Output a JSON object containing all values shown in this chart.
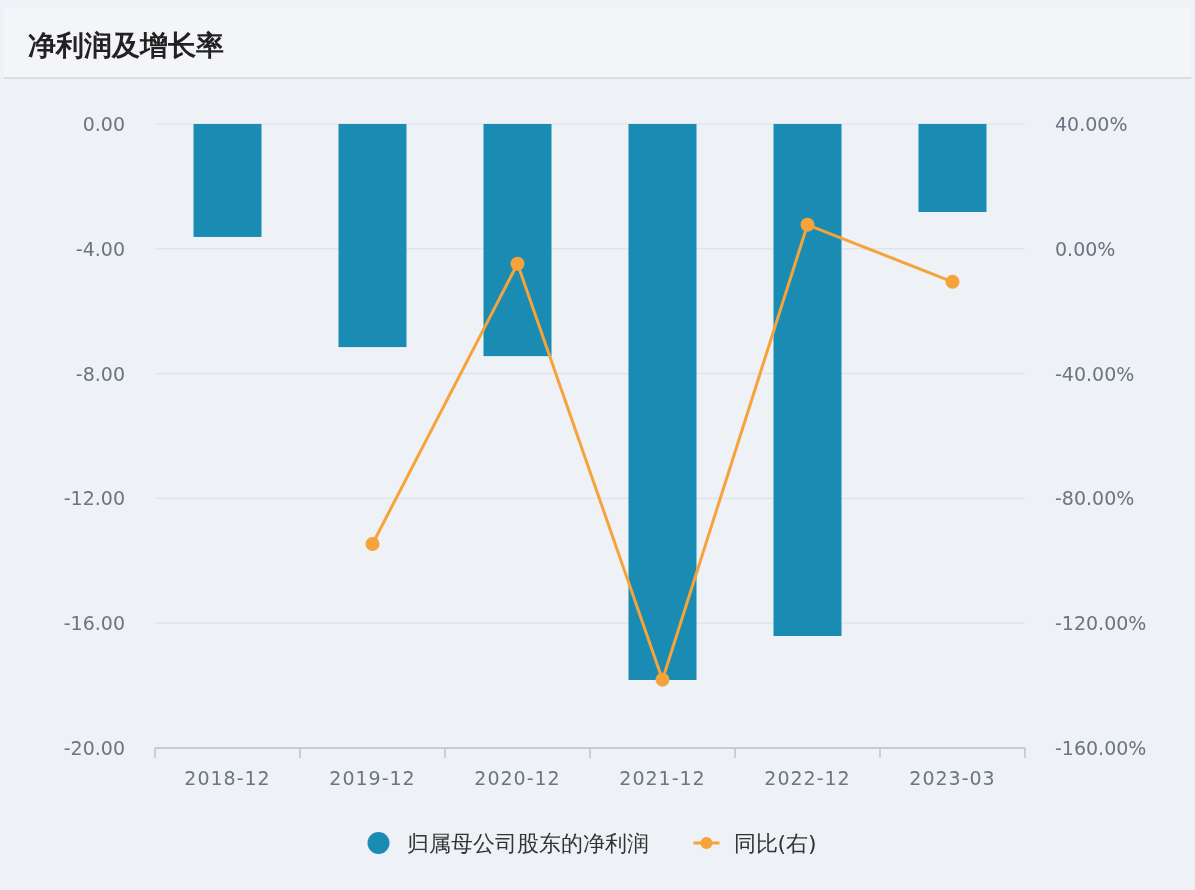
{
  "chart_data": {
    "type": "bar",
    "title": "净利润及增长率",
    "categories": [
      "2018-12",
      "2019-12",
      "2020-12",
      "2021-12",
      "2022-12",
      "2023-03"
    ],
    "series": [
      {
        "name": "归属母公司股东的净利润",
        "color": "#1a8bb3",
        "values": [
          -3.62,
          -7.15,
          -7.44,
          -17.82,
          -16.41,
          -2.82
        ]
      },
      {
        "name": "同比(右)",
        "type": "line",
        "axis": "y2",
        "color": "#f5a33a",
        "values": [
          null,
          -94.6,
          -4.8,
          -138.1,
          7.7,
          -10.6
        ]
      }
    ],
    "ylim": [
      -20,
      0
    ],
    "yticks": [
      {
        "value": 0,
        "label": "0.00"
      },
      {
        "value": -4,
        "label": "-4.00"
      },
      {
        "value": -8,
        "label": "-8.00"
      },
      {
        "value": -12,
        "label": "-12.00"
      },
      {
        "value": -16,
        "label": "-16.00"
      },
      {
        "value": -20,
        "label": "-20.00"
      }
    ],
    "y2lim": [
      -160,
      40
    ],
    "y2ticks": [
      {
        "value": 40,
        "label": "40.00%"
      },
      {
        "value": 0,
        "label": "0.00%"
      },
      {
        "value": -40,
        "label": "-40.00%"
      },
      {
        "value": -80,
        "label": "-80.00%"
      },
      {
        "value": -120,
        "label": "-120.00%"
      },
      {
        "value": -160,
        "label": "-160.00%"
      }
    ],
    "grid": "y",
    "legend": "bottom",
    "marker": "circle",
    "line_style": "solid"
  }
}
